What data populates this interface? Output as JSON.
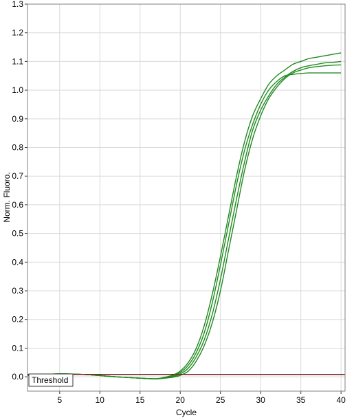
{
  "chart_data": {
    "type": "line",
    "title": "",
    "xlabel": "Cycle",
    "ylabel": "Norm. Fluoro.",
    "xlim": [
      1,
      40.5
    ],
    "ylim": [
      -0.05,
      1.3
    ],
    "xticks": [
      5,
      10,
      15,
      20,
      25,
      30,
      35,
      40
    ],
    "yticks": [
      0.0,
      0.1,
      0.2,
      0.3,
      0.4,
      0.5,
      0.6,
      0.7,
      0.8,
      0.9,
      1.0,
      1.1,
      1.2,
      1.3
    ],
    "ytick_labels": [
      "0.0",
      "0.1",
      "0.2",
      "0.3",
      "0.4",
      "0.5",
      "0.6",
      "0.7",
      "0.8",
      "0.9",
      "1.0",
      "1.1",
      "1.2",
      "1.3"
    ],
    "grid": true,
    "threshold": {
      "label": "Threshold",
      "value": 0.008,
      "color": "#7a2a2a"
    },
    "series_color": "#1f8a1f",
    "series": [
      {
        "x": [
          1,
          5,
          8,
          12,
          15,
          17,
          18,
          19,
          20,
          21,
          22,
          23,
          24,
          25,
          26,
          27,
          28,
          29,
          30,
          31,
          32,
          33,
          34,
          35,
          36,
          37,
          38,
          39,
          40
        ],
        "y": [
          0.005,
          0.01,
          0.008,
          0.0,
          -0.005,
          -0.007,
          -0.002,
          0.005,
          0.02,
          0.05,
          0.1,
          0.18,
          0.29,
          0.42,
          0.56,
          0.7,
          0.82,
          0.91,
          0.97,
          1.02,
          1.05,
          1.07,
          1.09,
          1.1,
          1.11,
          1.115,
          1.12,
          1.125,
          1.13
        ]
      },
      {
        "x": [
          1,
          5,
          8,
          12,
          15,
          17,
          18,
          19,
          20,
          21,
          22,
          23,
          24,
          25,
          26,
          27,
          28,
          29,
          30,
          31,
          32,
          33,
          34,
          35,
          36,
          37,
          38,
          39,
          40
        ],
        "y": [
          0.005,
          0.01,
          0.008,
          0.0,
          -0.005,
          -0.007,
          -0.003,
          0.003,
          0.015,
          0.04,
          0.085,
          0.155,
          0.26,
          0.39,
          0.53,
          0.67,
          0.79,
          0.88,
          0.95,
          1.0,
          1.03,
          1.05,
          1.055,
          1.058,
          1.06,
          1.06,
          1.06,
          1.06,
          1.06
        ]
      },
      {
        "x": [
          1,
          5,
          8,
          12,
          15,
          17,
          18,
          19,
          20,
          21,
          22,
          23,
          24,
          25,
          26,
          27,
          28,
          29,
          30,
          31,
          32,
          33,
          34,
          35,
          36,
          37,
          38,
          39,
          40
        ],
        "y": [
          0.005,
          0.01,
          0.008,
          0.0,
          -0.005,
          -0.007,
          -0.004,
          0.0,
          0.01,
          0.03,
          0.07,
          0.13,
          0.22,
          0.34,
          0.48,
          0.62,
          0.75,
          0.86,
          0.93,
          0.98,
          1.02,
          1.045,
          1.065,
          1.078,
          1.085,
          1.09,
          1.095,
          1.097,
          1.1
        ]
      },
      {
        "x": [
          1,
          5,
          8,
          12,
          15,
          17,
          18,
          19,
          20,
          21,
          22,
          23,
          24,
          25,
          26,
          27,
          28,
          29,
          30,
          31,
          32,
          33,
          34,
          35,
          36,
          37,
          38,
          39,
          40
        ],
        "y": [
          0.005,
          0.01,
          0.008,
          0.0,
          -0.005,
          -0.007,
          -0.005,
          -0.002,
          0.005,
          0.02,
          0.055,
          0.11,
          0.19,
          0.3,
          0.44,
          0.58,
          0.72,
          0.83,
          0.91,
          0.97,
          1.01,
          1.04,
          1.06,
          1.07,
          1.078,
          1.082,
          1.085,
          1.087,
          1.088
        ]
      }
    ]
  }
}
